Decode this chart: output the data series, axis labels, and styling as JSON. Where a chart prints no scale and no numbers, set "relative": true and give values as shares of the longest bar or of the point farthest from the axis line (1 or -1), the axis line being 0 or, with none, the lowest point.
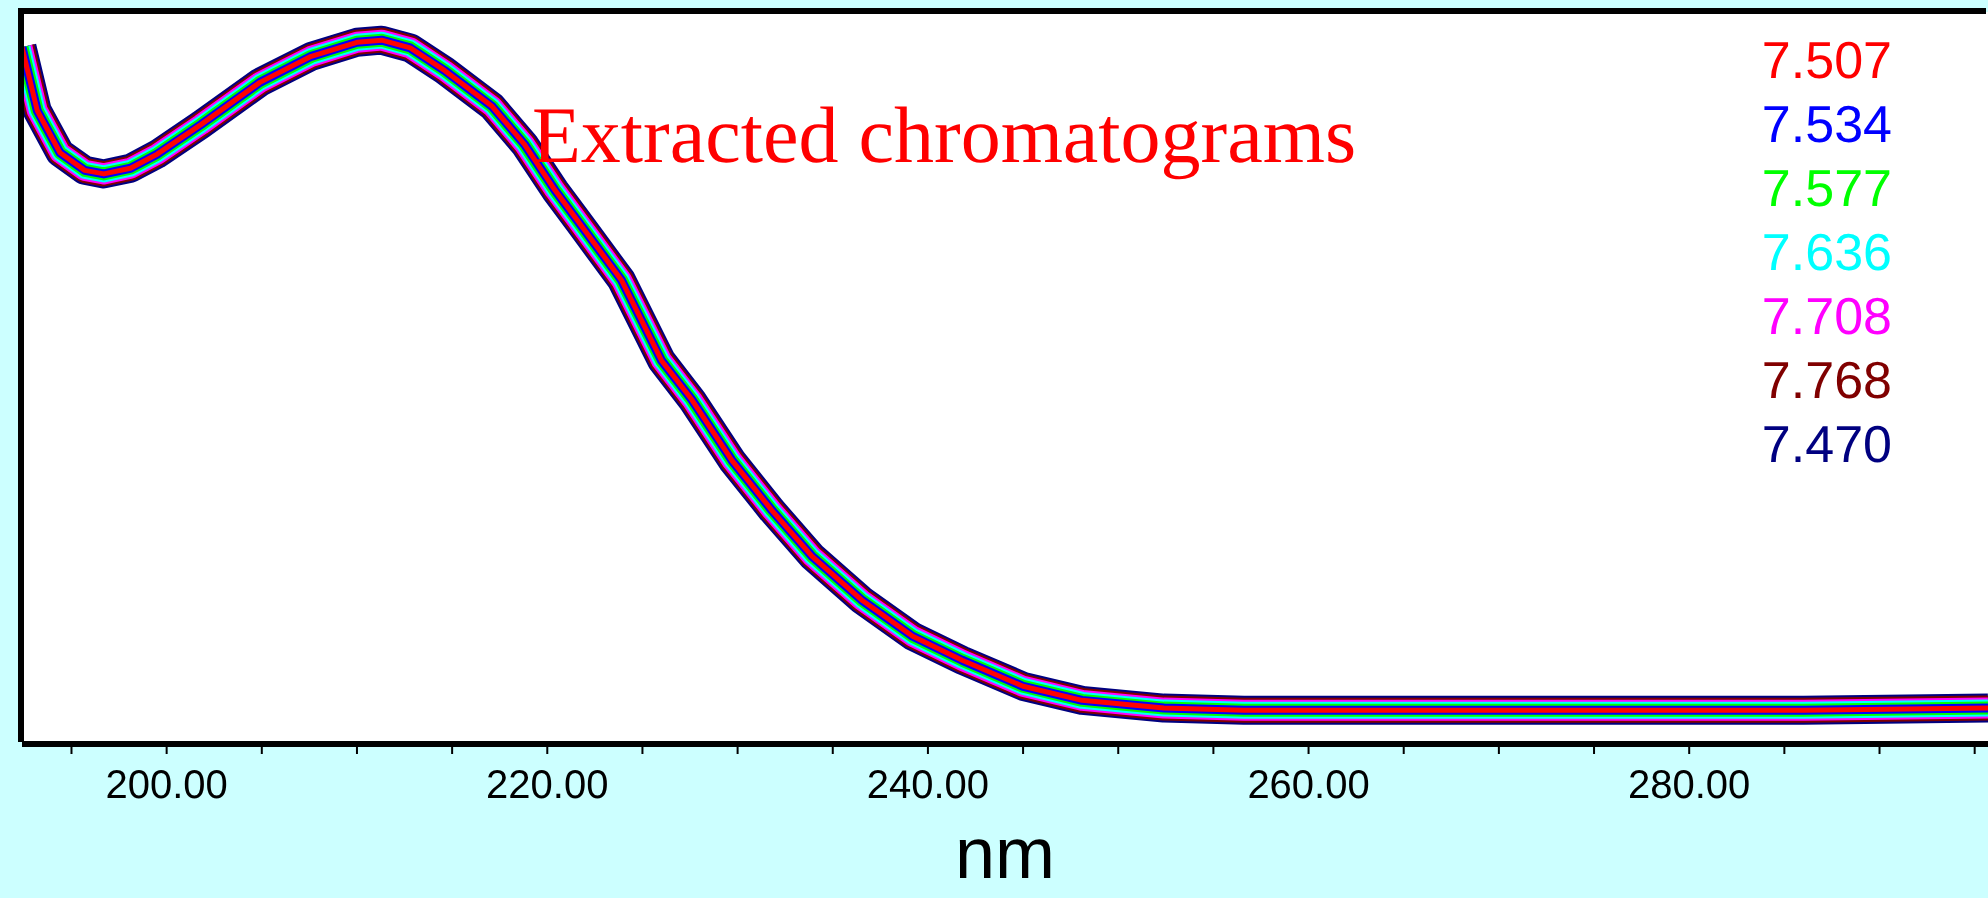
{
  "chart_data": {
    "type": "line",
    "title": "Extracted chromatograms",
    "xlabel": "nm",
    "relative": true,
    "legend": "top right",
    "grid": false,
    "marker": "none",
    "line_style": "solid",
    "x": [
      192.4,
      193.2,
      194.4,
      195.7,
      196.7,
      198.1,
      199.5,
      201.8,
      204.9,
      207.6,
      210.0,
      211.3,
      212.8,
      214.6,
      217.1,
      218.8,
      220.4,
      221.8,
      223.9,
      226.0,
      227.6,
      229.7,
      231.8,
      233.9,
      236.5,
      239.2,
      241.8,
      245.0,
      248.1,
      252.4,
      256.6,
      265.0,
      275.5,
      286.0,
      295.7
    ],
    "xlim": [
      192.4,
      295.7
    ],
    "xticks": [
      {
        "value": 195,
        "label": null
      },
      {
        "value": 200,
        "label": "200.00"
      },
      {
        "value": 205,
        "label": null
      },
      {
        "value": 210,
        "label": null
      },
      {
        "value": 215,
        "label": null
      },
      {
        "value": 220,
        "label": "220.00"
      },
      {
        "value": 225,
        "label": null
      },
      {
        "value": 230,
        "label": null
      },
      {
        "value": 235,
        "label": null
      },
      {
        "value": 240,
        "label": "240.00"
      },
      {
        "value": 245,
        "label": null
      },
      {
        "value": 250,
        "label": null
      },
      {
        "value": 255,
        "label": null
      },
      {
        "value": 260,
        "label": "260.00"
      },
      {
        "value": 265,
        "label": null
      },
      {
        "value": 270,
        "label": null
      },
      {
        "value": 275,
        "label": null
      },
      {
        "value": 280,
        "label": "280.00"
      },
      {
        "value": 285,
        "label": null
      },
      {
        "value": 290,
        "label": null
      },
      {
        "value": 295,
        "label": null
      }
    ],
    "series": [
      {
        "name": "7.507",
        "color": "#ff0000",
        "values": [
          0.99,
          0.9,
          0.84,
          0.815,
          0.81,
          0.818,
          0.838,
          0.88,
          0.94,
          0.977,
          0.997,
          1,
          0.989,
          0.957,
          0.906,
          0.852,
          0.787,
          0.736,
          0.659,
          0.545,
          0.489,
          0.403,
          0.332,
          0.267,
          0.205,
          0.153,
          0.119,
          0.082,
          0.062,
          0.051,
          0.048,
          0.048,
          0.048,
          0.048,
          0.051
        ]
      },
      {
        "name": "7.534",
        "color": "#0000ff",
        "values": [
          0.99,
          0.9,
          0.84,
          0.815,
          0.81,
          0.818,
          0.838,
          0.88,
          0.94,
          0.977,
          0.997,
          1,
          0.989,
          0.957,
          0.906,
          0.852,
          0.787,
          0.736,
          0.659,
          0.545,
          0.489,
          0.403,
          0.332,
          0.267,
          0.205,
          0.153,
          0.119,
          0.082,
          0.062,
          0.051,
          0.048,
          0.048,
          0.048,
          0.048,
          0.051
        ]
      },
      {
        "name": "7.577",
        "color": "#00ff00",
        "values": [
          0.99,
          0.9,
          0.84,
          0.815,
          0.81,
          0.818,
          0.838,
          0.88,
          0.94,
          0.977,
          0.997,
          1,
          0.989,
          0.957,
          0.906,
          0.852,
          0.787,
          0.736,
          0.659,
          0.545,
          0.489,
          0.403,
          0.332,
          0.267,
          0.205,
          0.153,
          0.119,
          0.082,
          0.062,
          0.051,
          0.048,
          0.048,
          0.048,
          0.048,
          0.051
        ]
      },
      {
        "name": "7.636",
        "color": "#00ffff",
        "values": [
          0.99,
          0.9,
          0.84,
          0.815,
          0.81,
          0.818,
          0.838,
          0.88,
          0.94,
          0.977,
          0.997,
          1,
          0.989,
          0.957,
          0.906,
          0.852,
          0.787,
          0.736,
          0.659,
          0.545,
          0.489,
          0.403,
          0.332,
          0.267,
          0.205,
          0.153,
          0.119,
          0.082,
          0.062,
          0.051,
          0.048,
          0.048,
          0.048,
          0.048,
          0.051
        ]
      },
      {
        "name": "7.708",
        "color": "#ff00ff",
        "values": [
          0.99,
          0.9,
          0.84,
          0.815,
          0.81,
          0.818,
          0.838,
          0.88,
          0.94,
          0.977,
          0.997,
          1,
          0.989,
          0.957,
          0.906,
          0.852,
          0.787,
          0.736,
          0.659,
          0.545,
          0.489,
          0.403,
          0.332,
          0.267,
          0.205,
          0.153,
          0.119,
          0.082,
          0.062,
          0.051,
          0.048,
          0.048,
          0.048,
          0.048,
          0.051
        ]
      },
      {
        "name": "7.768",
        "color": "#800000",
        "values": [
          0.99,
          0.9,
          0.84,
          0.815,
          0.81,
          0.818,
          0.838,
          0.88,
          0.94,
          0.977,
          0.997,
          1,
          0.989,
          0.957,
          0.906,
          0.852,
          0.787,
          0.736,
          0.659,
          0.545,
          0.489,
          0.403,
          0.332,
          0.267,
          0.205,
          0.153,
          0.119,
          0.082,
          0.062,
          0.051,
          0.048,
          0.048,
          0.048,
          0.048,
          0.051
        ]
      },
      {
        "name": "7.470",
        "color": "#000080",
        "values": [
          0.99,
          0.9,
          0.84,
          0.815,
          0.81,
          0.818,
          0.838,
          0.88,
          0.94,
          0.977,
          0.997,
          1,
          0.989,
          0.957,
          0.906,
          0.852,
          0.787,
          0.736,
          0.659,
          0.545,
          0.489,
          0.403,
          0.332,
          0.267,
          0.205,
          0.153,
          0.119,
          0.082,
          0.062,
          0.051,
          0.048,
          0.048,
          0.048,
          0.048,
          0.051
        ]
      }
    ]
  }
}
